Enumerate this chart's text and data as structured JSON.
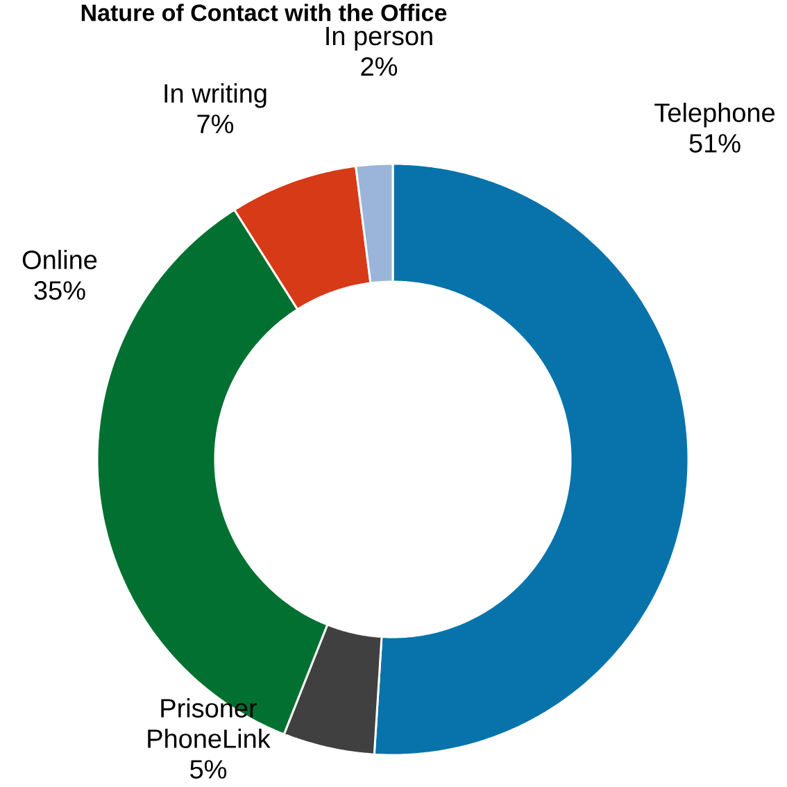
{
  "chart_data": {
    "type": "donut",
    "title": "Nature of Contact with the Office",
    "categories": [
      "Telephone",
      "Prisoner PhoneLink",
      "Online",
      "In writing",
      "In person"
    ],
    "values": [
      51,
      5,
      35,
      7,
      2
    ],
    "colors": [
      "#0773aa",
      "#404040",
      "#027030",
      "#d63a16",
      "#9ab5d9"
    ],
    "value_labels": [
      "51%",
      "5%",
      "35%",
      "7%",
      "2%"
    ]
  }
}
